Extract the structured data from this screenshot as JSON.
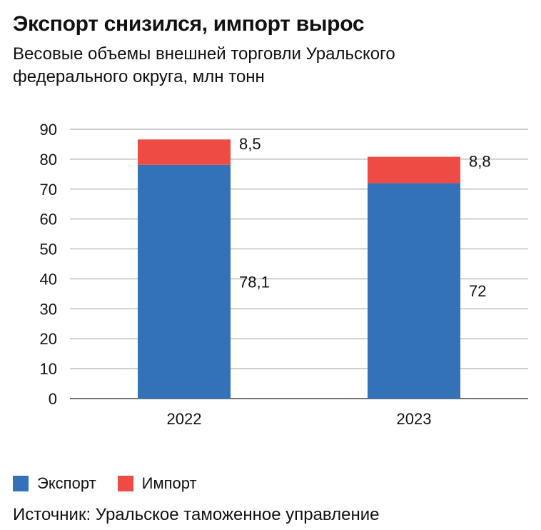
{
  "header": {
    "title": "Экспорт снизился, импорт вырос",
    "subtitle": "Весовые объемы внешней торговли Уральского федерального округа, млн тонн"
  },
  "colors": {
    "export": "#3371b8",
    "import": "#ee4b44",
    "grid": "#9a9a9a",
    "text": "#111111"
  },
  "chart_data": {
    "type": "bar",
    "stacked": true,
    "categories": [
      "2022",
      "2023"
    ],
    "series": [
      {
        "name": "Экспорт",
        "values": [
          78.1,
          72
        ],
        "labels": [
          "78,1",
          "72"
        ]
      },
      {
        "name": "Импорт",
        "values": [
          8.5,
          8.8
        ],
        "labels": [
          "8,5",
          "8,8"
        ]
      }
    ],
    "ylim": [
      0,
      90
    ],
    "yticks": [
      0,
      10,
      20,
      30,
      40,
      50,
      60,
      70,
      80,
      90
    ],
    "grid": true,
    "legend": "bottom-left"
  },
  "legend": {
    "items": [
      {
        "label": "Экспорт"
      },
      {
        "label": "Импорт"
      }
    ]
  },
  "footer": {
    "source": "Источник: Уральское таможенное управление"
  }
}
